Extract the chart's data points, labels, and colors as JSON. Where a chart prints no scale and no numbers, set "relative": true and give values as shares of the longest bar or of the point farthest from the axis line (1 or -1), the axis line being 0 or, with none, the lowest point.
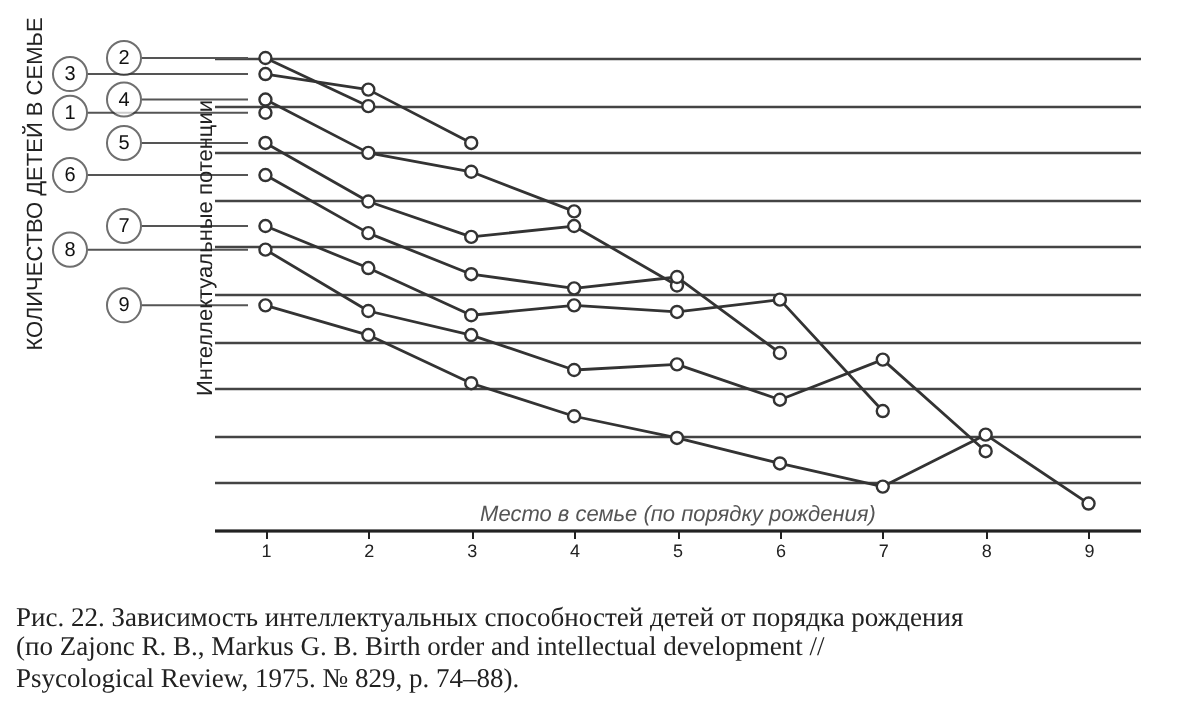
{
  "chart_data": {
    "type": "line",
    "relative": true,
    "title": "Рис. 22. Зависимость интеллектуальных способностей детей от порядка рождения",
    "annotations": [
      "(по Zajonc R. B., Markus G. B. Birth order and intellectual development // Psycological Review, 1975. № 829, p. 74–88)."
    ],
    "xlabel": "Место в семье (по порядку рождения)",
    "ylabel": "Интеллектуальные потенции",
    "legend_title": "КОЛИЧЕСТВО ДЕТЕЙ В СЕМЬЕ",
    "categories": [
      "1",
      "2",
      "3",
      "4",
      "5",
      "6",
      "7",
      "8",
      "9"
    ],
    "grid": "y",
    "legend": "left",
    "marker": "circle",
    "line_style": "solid",
    "series": [
      {
        "name": "1",
        "color": "#333333",
        "values": [
          0.884,
          null,
          null,
          null,
          null,
          null,
          null,
          null,
          null
        ]
      },
      {
        "name": "2",
        "color": "#333333",
        "values": [
          1.0,
          0.898,
          null,
          null,
          null,
          null,
          null,
          null,
          null
        ]
      },
      {
        "name": "3",
        "color": "#333333",
        "values": [
          0.966,
          0.933,
          0.82,
          null,
          null,
          null,
          null,
          null,
          null
        ]
      },
      {
        "name": "4",
        "color": "#333333",
        "values": [
          0.912,
          0.799,
          0.759,
          0.675,
          null,
          null,
          null,
          null,
          null
        ]
      },
      {
        "name": "5",
        "color": "#333333",
        "values": [
          0.82,
          0.696,
          0.621,
          0.644,
          0.518,
          null,
          null,
          null,
          null
        ]
      },
      {
        "name": "6",
        "color": "#333333",
        "values": [
          0.752,
          0.629,
          0.542,
          0.512,
          0.536,
          0.375,
          null,
          null,
          null
        ]
      },
      {
        "name": "7",
        "color": "#333333",
        "values": [
          0.644,
          0.555,
          0.455,
          0.476,
          0.462,
          0.488,
          0.252,
          null,
          null
        ]
      },
      {
        "name": "8",
        "color": "#333333",
        "values": [
          0.594,
          0.464,
          0.413,
          0.339,
          0.351,
          0.276,
          0.361,
          0.167,
          null
        ]
      },
      {
        "name": "9",
        "color": "#333333",
        "values": [
          0.476,
          0.413,
          0.311,
          0.241,
          0.195,
          0.141,
          0.092,
          0.202,
          0.056
        ]
      }
    ]
  }
}
